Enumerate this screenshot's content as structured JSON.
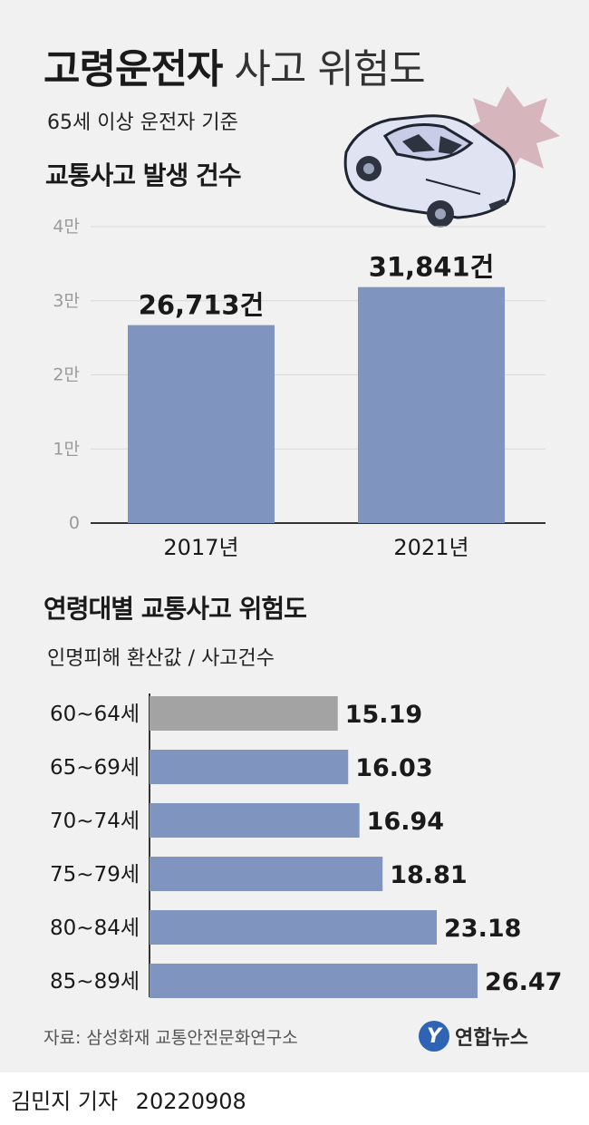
{
  "title": {
    "bold": "고령운전자",
    "light": "사고 위험도"
  },
  "subtitle": "65세 이상 운전자 기준",
  "section1": {
    "title": "교통사고 발생 건수"
  },
  "section2": {
    "title": "연령대별 교통사고 위험도",
    "subtitle": "인명피해 환산값 / 사고건수"
  },
  "source": "자료: 삼성화재 교통안전문화연구소",
  "logo": {
    "mark": "Y",
    "text": "연합뉴스"
  },
  "byline": {
    "reporter": "김민지 기자",
    "date": "20220908"
  },
  "colors": {
    "bar": "#7f95bf",
    "bar_gray": "#a3a3a3",
    "grid": "#d9d9d9",
    "crash_burst": "#d7b5bd"
  },
  "chart_data": [
    {
      "type": "bar",
      "title": "교통사고 발생 건수",
      "categories": [
        "2017년",
        "2021년"
      ],
      "values": [
        26713,
        31841
      ],
      "value_labels": [
        "26,713건",
        "31,841건"
      ],
      "ylim": [
        0,
        40000
      ],
      "yticks": [
        0,
        10000,
        20000,
        30000,
        40000
      ],
      "ytick_labels": [
        "0",
        "1만",
        "2만",
        "3만",
        "4만"
      ],
      "grid": true
    },
    {
      "type": "bar",
      "orientation": "horizontal",
      "title": "연령대별 교통사고 위험도",
      "subtitle": "인명피해 환산값 / 사고건수",
      "categories": [
        "60~64세",
        "65~69세",
        "70~74세",
        "75~79세",
        "80~84세",
        "85~89세"
      ],
      "values": [
        15.19,
        16.03,
        16.94,
        18.81,
        23.18,
        26.47
      ],
      "value_labels": [
        "15.19",
        "16.03",
        "16.94",
        "18.81",
        "23.18",
        "26.47"
      ],
      "highlight_gray_index": 0
    }
  ]
}
